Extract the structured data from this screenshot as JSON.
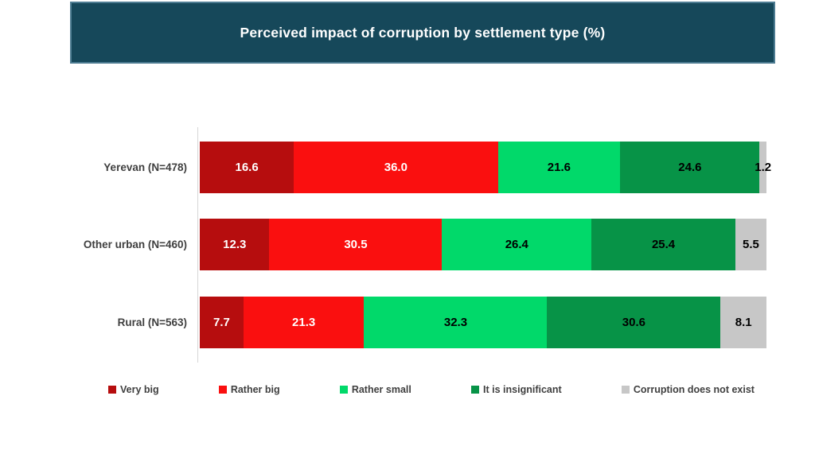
{
  "chart_data": {
    "type": "bar",
    "stacked": true,
    "orientation": "horizontal",
    "title": "Perceived impact of corruption by settlement type (%)",
    "categories": [
      "Yerevan (N=478)",
      "Other urban (N=460)",
      "Rural (N=563)"
    ],
    "series": [
      {
        "name": "Very big",
        "color": "#b60d0e",
        "label_color": "#ffffff",
        "values": [
          16.6,
          12.3,
          7.7
        ]
      },
      {
        "name": "Rather big",
        "color": "#fa0f0f",
        "label_color": "#ffffff",
        "values": [
          36.0,
          30.5,
          21.3
        ]
      },
      {
        "name": "Rather small",
        "color": "#01d96a",
        "label_color": "#000000",
        "values": [
          21.6,
          26.4,
          32.3
        ]
      },
      {
        "name": "It is insignificant",
        "color": "#079347",
        "label_color": "#000000",
        "values": [
          24.6,
          25.4,
          30.6
        ]
      },
      {
        "name": "Corruption does not exist",
        "color": "#c7c7c7",
        "label_color": "#000000",
        "values": [
          1.2,
          5.5,
          8.1
        ]
      }
    ],
    "xlim": [
      0,
      100
    ],
    "value_format": "one_decimal",
    "grid": false,
    "legend_position": "bottom"
  },
  "palette": {
    "title_bar_bg": "#16485a",
    "title_bar_border": "#4d7c92",
    "axis_line": "#d6d6d6",
    "category_label_text": "#3f3f3f",
    "legend_text": "#3f3f3f"
  }
}
